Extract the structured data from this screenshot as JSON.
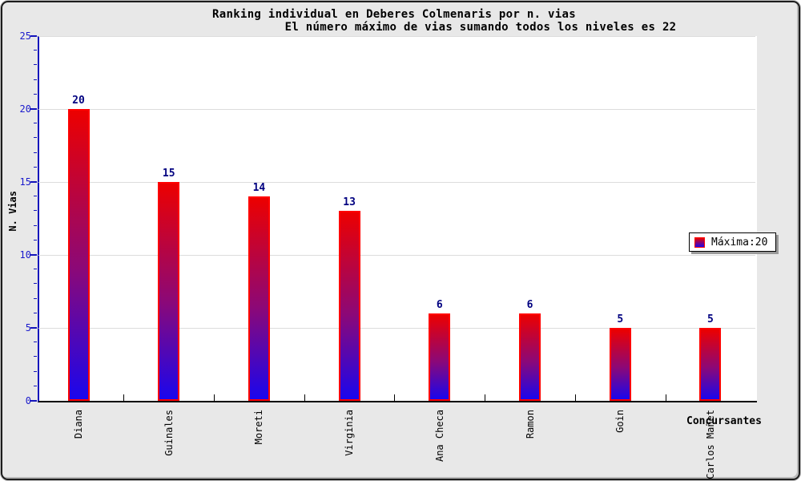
{
  "chart_data": {
    "type": "bar",
    "title_line1": "Ranking individual en Deberes Colmenaris por n. vias",
    "title_line2": "El número máximo de vias sumando todos los niveles es 22",
    "categories": [
      "Diana",
      "Guinales",
      "Moreti",
      "Virginia",
      "Ana Checa",
      "Ramon",
      "Goin",
      "Carlos Mañet"
    ],
    "values": [
      20,
      15,
      14,
      13,
      6,
      6,
      5,
      5
    ],
    "ylabel": "N. Vias",
    "xlabel": "Concursantes",
    "ylim": [
      0,
      25
    ],
    "y_major_ticks": [
      0,
      5,
      10,
      15,
      20,
      25
    ],
    "y_minor_step": 1,
    "grid": "horizontal-major",
    "legend": {
      "label": "Máxima:20",
      "position": "right"
    },
    "colors": {
      "background": "#e8e8e8",
      "plot_background": "#ffffff",
      "bar_border": "#ff0000",
      "bar_gradient_top": "#ec0000",
      "bar_gradient_bottom": "#1a06ee",
      "value_label": "#000080",
      "y_axis": "#1414bb",
      "y_tick_label": "#1a1acc",
      "x_axis": "#000000",
      "gridline": "#dcdcdc",
      "title": "#000000"
    }
  }
}
